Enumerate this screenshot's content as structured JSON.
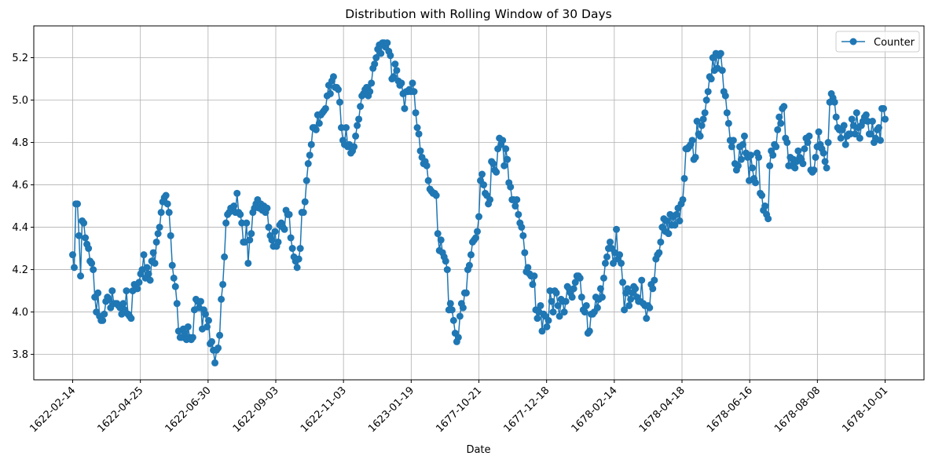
{
  "chart_data": {
    "type": "line",
    "title": "Distribution with Rolling Window of 30 Days",
    "xlabel": "Date",
    "ylabel": "",
    "ylim": [
      3.68,
      5.35
    ],
    "yticks": [
      3.8,
      4.0,
      4.2,
      4.4,
      4.6,
      4.8,
      5.0,
      5.2
    ],
    "ytick_labels": [
      "3.8",
      "4.0",
      "4.2",
      "4.4",
      "4.6",
      "4.8",
      "5.0",
      "5.2"
    ],
    "xtick_labels": [
      "1622-02-14",
      "1622-04-25",
      "1622-06-30",
      "1622-09-03",
      "1622-11-03",
      "1623-01-19",
      "1677-10-21",
      "1677-12-18",
      "1678-02-14",
      "1678-04-18",
      "1678-06-16",
      "1678-08-08",
      "1678-10-01"
    ],
    "grid": true,
    "legend_position": "top-right",
    "series": [
      {
        "name": "Counter",
        "color": "#1f77b4",
        "marker": "circle",
        "values": [
          4.27,
          4.21,
          4.51,
          4.51,
          4.36,
          4.17,
          4.43,
          4.42,
          4.35,
          4.32,
          4.3,
          4.24,
          4.23,
          4.2,
          4.07,
          4.0,
          4.09,
          3.98,
          3.96,
          3.96,
          3.99,
          4.05,
          4.07,
          4.06,
          4.02,
          4.1,
          4.04,
          4.04,
          4.04,
          4.03,
          4.02,
          3.99,
          4.04,
          4.01,
          4.1,
          3.99,
          3.98,
          3.97,
          4.1,
          4.13,
          4.11,
          4.11,
          4.14,
          4.18,
          4.2,
          4.27,
          4.16,
          4.21,
          4.18,
          4.15,
          4.24,
          4.28,
          4.23,
          4.33,
          4.37,
          4.4,
          4.47,
          4.52,
          4.54,
          4.55,
          4.51,
          4.47,
          4.36,
          4.22,
          4.16,
          4.12,
          4.04,
          3.91,
          3.88,
          3.88,
          3.92,
          3.9,
          3.87,
          3.93,
          3.88,
          3.87,
          3.88,
          4.01,
          4.06,
          4.05,
          4.02,
          4.05,
          3.92,
          4.01,
          3.99,
          3.93,
          3.96,
          3.85,
          3.86,
          3.82,
          3.76,
          3.82,
          3.83,
          3.89,
          4.06,
          4.13,
          4.26,
          4.42,
          4.46,
          4.47,
          4.49,
          4.49,
          4.5,
          4.47,
          4.56,
          4.47,
          4.46,
          4.42,
          4.33,
          4.33,
          4.42,
          4.23,
          4.34,
          4.37,
          4.47,
          4.49,
          4.51,
          4.53,
          4.49,
          4.51,
          4.48,
          4.5,
          4.47,
          4.49,
          4.4,
          4.36,
          4.34,
          4.31,
          4.38,
          4.31,
          4.33,
          4.41,
          4.42,
          4.4,
          4.39,
          4.48,
          4.46,
          4.46,
          4.35,
          4.3,
          4.26,
          4.24,
          4.21,
          4.25,
          4.3,
          4.47,
          4.47,
          4.52,
          4.62,
          4.7,
          4.74,
          4.79,
          4.87,
          4.87,
          4.86,
          4.93,
          4.89,
          4.93,
          4.94,
          4.95,
          4.96,
          5.02,
          5.07,
          5.03,
          5.09,
          5.11,
          5.06,
          5.06,
          5.05,
          4.99,
          4.87,
          4.81,
          4.79,
          4.87,
          4.78,
          4.79,
          4.75,
          4.76,
          4.78,
          4.83,
          4.88,
          4.91,
          4.97,
          5.02,
          5.03,
          5.05,
          5.06,
          5.02,
          5.04,
          5.08,
          5.15,
          5.17,
          5.2,
          5.24,
          5.26,
          5.22,
          5.27,
          5.27,
          5.25,
          5.27,
          5.23,
          5.21,
          5.1,
          5.11,
          5.17,
          5.14,
          5.09,
          5.07,
          5.08,
          5.03,
          4.96,
          5.04,
          5.04,
          5.05,
          5.04,
          5.08,
          5.04,
          4.94,
          4.87,
          4.84,
          4.76,
          4.73,
          4.7,
          4.71,
          4.69,
          4.62,
          4.58,
          4.57,
          4.56,
          4.56,
          4.55,
          4.37,
          4.29,
          4.34,
          4.28,
          4.26,
          4.24,
          4.2,
          4.01,
          4.04,
          4.01,
          3.96,
          3.9,
          3.86,
          3.88,
          3.98,
          4.04,
          4.02,
          4.09,
          4.09,
          4.2,
          4.22,
          4.27,
          4.33,
          4.34,
          4.35,
          4.38,
          4.45,
          4.62,
          4.65,
          4.6,
          4.56,
          4.55,
          4.51,
          4.53,
          4.71,
          4.7,
          4.67,
          4.66,
          4.77,
          4.82,
          4.79,
          4.81,
          4.69,
          4.77,
          4.72,
          4.61,
          4.59,
          4.53,
          4.53,
          4.5,
          4.53,
          4.46,
          4.42,
          4.4,
          4.36,
          4.28,
          4.19,
          4.21,
          4.18,
          4.17,
          4.13,
          4.17,
          4.01,
          3.97,
          4.0,
          4.03,
          3.91,
          3.99,
          3.98,
          3.93,
          3.96,
          4.1,
          4.05,
          4.0,
          4.1,
          4.09,
          4.03,
          3.98,
          4.06,
          4.05,
          4.0,
          4.05,
          4.12,
          4.11,
          4.09,
          4.07,
          4.11,
          4.14,
          4.17,
          4.17,
          4.16,
          4.07,
          4.01,
          4.0,
          4.03,
          3.9,
          3.91,
          3.99,
          3.99,
          4.0,
          4.07,
          4.02,
          4.06,
          4.11,
          4.07,
          4.16,
          4.23,
          4.26,
          4.3,
          4.33,
          4.3,
          4.23,
          4.28,
          4.39,
          4.25,
          4.27,
          4.23,
          4.14,
          4.01,
          4.09,
          4.11,
          4.03,
          4.06,
          4.09,
          4.12,
          4.11,
          4.07,
          4.05,
          4.05,
          4.15,
          4.04,
          4.03,
          3.97,
          4.03,
          4.02,
          4.13,
          4.11,
          4.15,
          4.25,
          4.27,
          4.28,
          4.33,
          4.4,
          4.44,
          4.38,
          4.43,
          4.37,
          4.46,
          4.41,
          4.45,
          4.41,
          4.46,
          4.49,
          4.43,
          4.51,
          4.53,
          4.63,
          4.77,
          4.77,
          4.78,
          4.79,
          4.81,
          4.72,
          4.73,
          4.9,
          4.84,
          4.83,
          4.88,
          4.91,
          4.94,
          5.0,
          5.04,
          5.11,
          5.1,
          5.2,
          5.14,
          5.22,
          5.15,
          5.21,
          5.22,
          5.14,
          5.04,
          5.02,
          4.94,
          4.89,
          4.81,
          4.78,
          4.81,
          4.7,
          4.67,
          4.69,
          4.78,
          4.72,
          4.79,
          4.83,
          4.75,
          4.73,
          4.62,
          4.74,
          4.68,
          4.63,
          4.61,
          4.75,
          4.73,
          4.56,
          4.55,
          4.48,
          4.5,
          4.46,
          4.44,
          4.69,
          4.76,
          4.74,
          4.79,
          4.78,
          4.86,
          4.92,
          4.89,
          4.96,
          4.97,
          4.82,
          4.8,
          4.69,
          4.73,
          4.69,
          4.72,
          4.68,
          4.71,
          4.76,
          4.73,
          4.72,
          4.7,
          4.77,
          4.82,
          4.8,
          4.83,
          4.67,
          4.66,
          4.67,
          4.73,
          4.78,
          4.85,
          4.79,
          4.77,
          4.75,
          4.71,
          4.68,
          4.8,
          4.99,
          5.03,
          5.01,
          4.99,
          4.92,
          4.87,
          4.86,
          4.82,
          4.86,
          4.88,
          4.79,
          4.83,
          4.84,
          4.84,
          4.91,
          4.88,
          4.84,
          4.94,
          4.87,
          4.82,
          4.88,
          4.9,
          4.92,
          4.93,
          4.9,
          4.84,
          4.84,
          4.9,
          4.8,
          4.82,
          4.86,
          4.87,
          4.81,
          4.96,
          4.96,
          4.91
        ]
      }
    ]
  }
}
